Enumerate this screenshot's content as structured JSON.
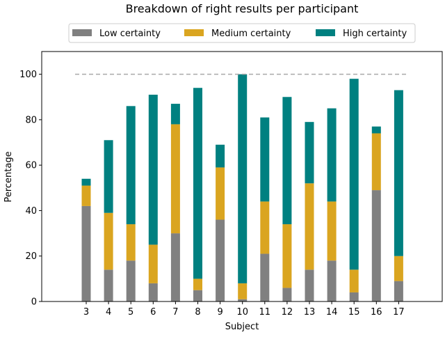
{
  "chart_data": {
    "type": "bar",
    "stacked": true,
    "title": "Breakdown of right results per participant",
    "xlabel": "Subject",
    "ylabel": "Percentage",
    "categories": [
      "3",
      "4",
      "5",
      "6",
      "7",
      "8",
      "9",
      "10",
      "11",
      "12",
      "13",
      "14",
      "15",
      "16",
      "17"
    ],
    "series": [
      {
        "name": "Low certainty",
        "color": "#808080",
        "values": [
          42,
          14,
          18,
          8,
          30,
          5,
          36,
          1,
          21,
          6,
          14,
          18,
          4,
          49,
          9
        ]
      },
      {
        "name": "Medium certainty",
        "color": "#DAA520",
        "values": [
          9,
          25,
          16,
          17,
          48,
          5,
          23,
          7,
          23,
          28,
          38,
          26,
          10,
          25,
          11
        ]
      },
      {
        "name": "High certainty",
        "color": "#008080",
        "values": [
          3,
          32,
          52,
          66,
          9,
          84,
          10,
          92,
          37,
          56,
          27,
          41,
          84,
          3,
          73
        ]
      }
    ],
    "reference_line": {
      "y": 100,
      "style": "dashed",
      "color": "#a9a9a9"
    },
    "ylim": [
      0,
      110
    ],
    "yticks": [
      0,
      20,
      40,
      60,
      80,
      100
    ],
    "grid": false,
    "legend_placement": "top-center"
  }
}
